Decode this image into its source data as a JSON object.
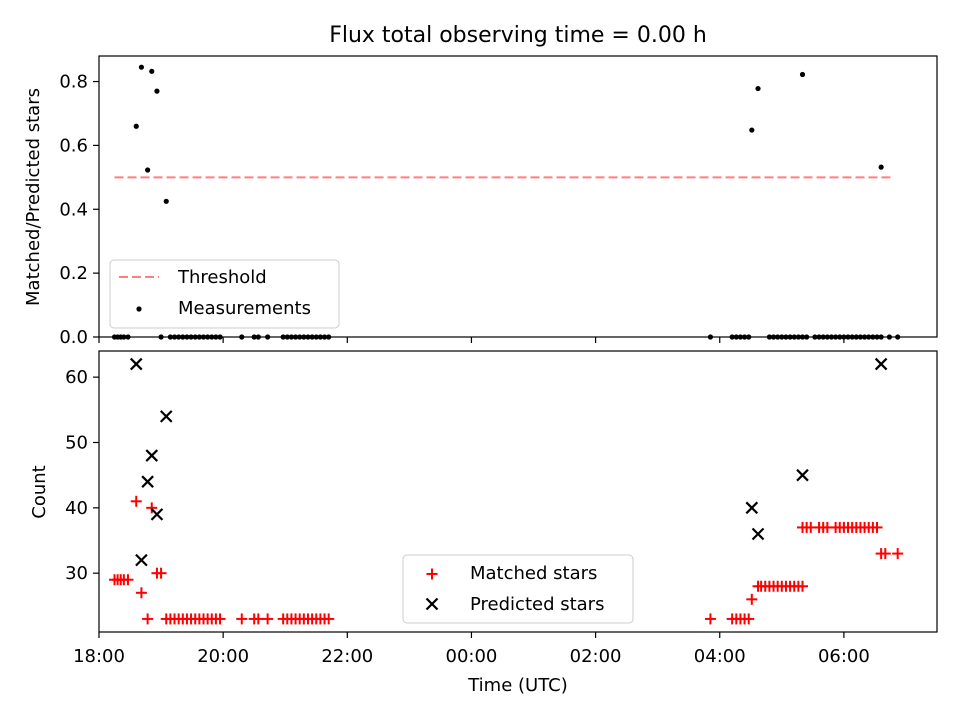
{
  "figure": {
    "title": "Flux total observing time = 0.00 h"
  },
  "chart_data": [
    {
      "type": "scatter",
      "ylabel": "Matched/Predicted stars",
      "xlabel": "",
      "ylim": [
        0,
        0.88
      ],
      "yticks": [
        0.0,
        0.2,
        0.4,
        0.6,
        0.8
      ],
      "ytick_labels": [
        "0.0",
        "0.2",
        "0.4",
        "0.6",
        "0.8"
      ],
      "xlim": [
        "18:00",
        "07:30"
      ],
      "xticks": [
        "18:00",
        "20:00",
        "22:00",
        "00:00",
        "02:00",
        "04:00",
        "06:00"
      ],
      "grid": false,
      "legend": "lower-left",
      "threshold": {
        "name": "Threshold",
        "value": 0.5,
        "x_range": [
          "18:15",
          "06:45"
        ],
        "color": "#ff7f7f",
        "style": "dashed"
      },
      "series": [
        {
          "name": "Measurements",
          "color": "#000000",
          "marker": "dot",
          "points": [
            [
              "18:15",
              0
            ],
            [
              "18:18",
              0
            ],
            [
              "18:21",
              0
            ],
            [
              "18:24",
              0
            ],
            [
              "18:28",
              0
            ],
            [
              "18:36",
              0.66
            ],
            [
              "18:41",
              0.845
            ],
            [
              "18:47",
              0.523
            ],
            [
              "18:51",
              0.832
            ],
            [
              "18:56",
              0.77
            ],
            [
              "19:05",
              0.425
            ],
            [
              "19:00",
              0
            ],
            [
              "19:09",
              0
            ],
            [
              "19:13",
              0
            ],
            [
              "19:17",
              0
            ],
            [
              "19:21",
              0
            ],
            [
              "19:25",
              0
            ],
            [
              "19:29",
              0
            ],
            [
              "19:33",
              0
            ],
            [
              "19:37",
              0
            ],
            [
              "19:41",
              0
            ],
            [
              "19:45",
              0
            ],
            [
              "19:49",
              0
            ],
            [
              "19:53",
              0
            ],
            [
              "19:57",
              0
            ],
            [
              "20:18",
              0
            ],
            [
              "20:30",
              0
            ],
            [
              "20:34",
              0
            ],
            [
              "20:43",
              0
            ],
            [
              "20:58",
              0
            ],
            [
              "21:02",
              0
            ],
            [
              "21:06",
              0
            ],
            [
              "21:10",
              0
            ],
            [
              "21:14",
              0
            ],
            [
              "21:18",
              0
            ],
            [
              "21:22",
              0
            ],
            [
              "21:26",
              0
            ],
            [
              "21:30",
              0
            ],
            [
              "21:34",
              0
            ],
            [
              "21:38",
              0
            ],
            [
              "21:42",
              0
            ],
            [
              "03:51",
              0
            ],
            [
              "04:12",
              0
            ],
            [
              "04:16",
              0
            ],
            [
              "04:20",
              0
            ],
            [
              "04:24",
              0
            ],
            [
              "04:28",
              0
            ],
            [
              "04:31",
              0.648
            ],
            [
              "04:37",
              0.778
            ],
            [
              "04:48",
              0
            ],
            [
              "04:52",
              0
            ],
            [
              "04:56",
              0
            ],
            [
              "05:00",
              0
            ],
            [
              "05:04",
              0
            ],
            [
              "05:08",
              0
            ],
            [
              "05:12",
              0
            ],
            [
              "05:16",
              0
            ],
            [
              "05:20",
              0
            ],
            [
              "05:24",
              0
            ],
            [
              "05:20",
              0.822
            ],
            [
              "05:32",
              0
            ],
            [
              "05:36",
              0
            ],
            [
              "05:40",
              0
            ],
            [
              "05:44",
              0
            ],
            [
              "05:48",
              0
            ],
            [
              "05:52",
              0
            ],
            [
              "05:56",
              0
            ],
            [
              "06:00",
              0
            ],
            [
              "06:04",
              0
            ],
            [
              "06:08",
              0
            ],
            [
              "06:12",
              0
            ],
            [
              "06:16",
              0
            ],
            [
              "06:20",
              0
            ],
            [
              "06:24",
              0
            ],
            [
              "06:28",
              0
            ],
            [
              "06:32",
              0
            ],
            [
              "06:36",
              0
            ],
            [
              "06:36",
              0.532
            ],
            [
              "06:44",
              0
            ],
            [
              "06:52",
              0
            ]
          ]
        }
      ]
    },
    {
      "type": "scatter",
      "xlabel": "Time (UTC)",
      "ylabel": "Count",
      "ylim": [
        21,
        64
      ],
      "yticks": [
        30,
        40,
        50,
        60
      ],
      "ytick_labels": [
        "30",
        "40",
        "50",
        "60"
      ],
      "xlim": [
        "18:00",
        "07:30"
      ],
      "xticks": [
        "18:00",
        "20:00",
        "22:00",
        "00:00",
        "02:00",
        "04:00",
        "06:00"
      ],
      "xtick_labels": [
        "18:00",
        "20:00",
        "22:00",
        "00:00",
        "02:00",
        "04:00",
        "06:00"
      ],
      "grid": false,
      "legend": "lower-center",
      "series": [
        {
          "name": "Matched stars",
          "color": "#ff0000",
          "marker": "plus",
          "points": [
            [
              "18:15",
              29
            ],
            [
              "18:18",
              29
            ],
            [
              "18:21",
              29
            ],
            [
              "18:24",
              29
            ],
            [
              "18:28",
              29
            ],
            [
              "18:36",
              41
            ],
            [
              "18:41",
              27
            ],
            [
              "18:47",
              23
            ],
            [
              "18:51",
              40
            ],
            [
              "18:56",
              30
            ],
            [
              "19:00",
              30
            ],
            [
              "19:05",
              23
            ],
            [
              "19:09",
              23
            ],
            [
              "19:13",
              23
            ],
            [
              "19:17",
              23
            ],
            [
              "19:21",
              23
            ],
            [
              "19:25",
              23
            ],
            [
              "19:29",
              23
            ],
            [
              "19:33",
              23
            ],
            [
              "19:37",
              23
            ],
            [
              "19:41",
              23
            ],
            [
              "19:45",
              23
            ],
            [
              "19:49",
              23
            ],
            [
              "19:53",
              23
            ],
            [
              "19:57",
              23
            ],
            [
              "20:18",
              23
            ],
            [
              "20:30",
              23
            ],
            [
              "20:34",
              23
            ],
            [
              "20:43",
              23
            ],
            [
              "20:58",
              23
            ],
            [
              "21:02",
              23
            ],
            [
              "21:06",
              23
            ],
            [
              "21:10",
              23
            ],
            [
              "21:14",
              23
            ],
            [
              "21:18",
              23
            ],
            [
              "21:22",
              23
            ],
            [
              "21:26",
              23
            ],
            [
              "21:30",
              23
            ],
            [
              "21:34",
              23
            ],
            [
              "21:38",
              23
            ],
            [
              "21:42",
              23
            ],
            [
              "03:51",
              23
            ],
            [
              "04:12",
              23
            ],
            [
              "04:16",
              23
            ],
            [
              "04:20",
              23
            ],
            [
              "04:24",
              23
            ],
            [
              "04:28",
              23
            ],
            [
              "04:31",
              26
            ],
            [
              "04:37",
              28
            ],
            [
              "04:40",
              28
            ],
            [
              "04:44",
              28
            ],
            [
              "04:48",
              28
            ],
            [
              "04:52",
              28
            ],
            [
              "04:56",
              28
            ],
            [
              "05:00",
              28
            ],
            [
              "05:04",
              28
            ],
            [
              "05:08",
              28
            ],
            [
              "05:12",
              28
            ],
            [
              "05:16",
              28
            ],
            [
              "05:20",
              28
            ],
            [
              "05:20",
              37
            ],
            [
              "05:24",
              37
            ],
            [
              "05:28",
              37
            ],
            [
              "05:36",
              37
            ],
            [
              "05:40",
              37
            ],
            [
              "05:44",
              37
            ],
            [
              "05:52",
              37
            ],
            [
              "05:56",
              37
            ],
            [
              "06:00",
              37
            ],
            [
              "06:04",
              37
            ],
            [
              "06:08",
              37
            ],
            [
              "06:12",
              37
            ],
            [
              "06:16",
              37
            ],
            [
              "06:20",
              37
            ],
            [
              "06:24",
              37
            ],
            [
              "06:28",
              37
            ],
            [
              "06:32",
              37
            ],
            [
              "06:36",
              33
            ],
            [
              "06:40",
              33
            ],
            [
              "06:52",
              33
            ]
          ]
        },
        {
          "name": "Predicted stars",
          "color": "#000000",
          "marker": "x",
          "points": [
            [
              "18:36",
              62
            ],
            [
              "18:41",
              32
            ],
            [
              "18:47",
              44
            ],
            [
              "18:51",
              48
            ],
            [
              "18:56",
              39
            ],
            [
              "19:05",
              54
            ],
            [
              "04:31",
              40
            ],
            [
              "04:37",
              36
            ],
            [
              "05:20",
              45
            ],
            [
              "06:36",
              62
            ]
          ]
        }
      ]
    }
  ]
}
